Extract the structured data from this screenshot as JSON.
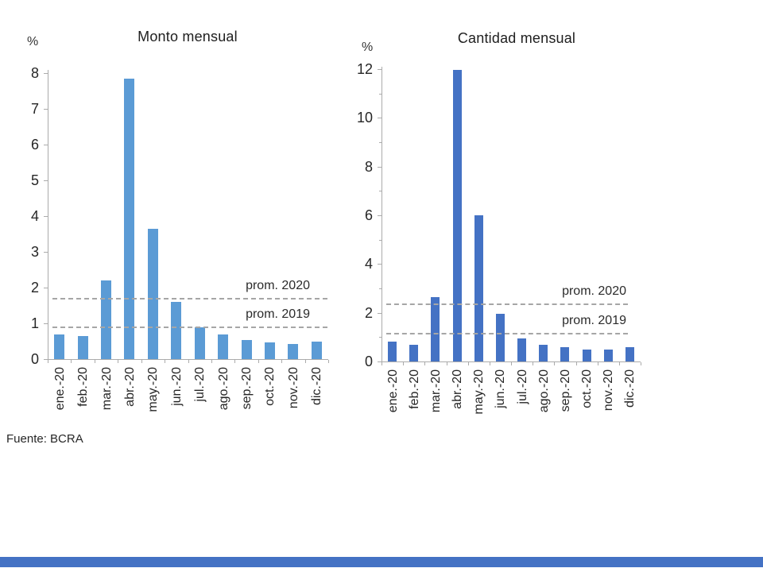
{
  "source_note": "Fuente: BCRA",
  "colors": {
    "left_bar": "#5B9BD5",
    "right_bar": "#4472C4",
    "dashed_line": "#A6A6A6",
    "axis": "#ABABAB",
    "footer_bar": "#4472C4"
  },
  "chart_data": [
    {
      "type": "bar",
      "title": "Monto mensual",
      "ylabel": "%",
      "categories": [
        "ene.-20",
        "feb.-20",
        "mar.-20",
        "abr.-20",
        "may.-20",
        "jun.-20",
        "jul.-20",
        "ago.-20",
        "sep.-20",
        "oct.-20",
        "nov.-20",
        "dic.-20"
      ],
      "values": [
        0.7,
        0.65,
        2.2,
        7.85,
        3.65,
        1.6,
        0.88,
        0.7,
        0.53,
        0.46,
        0.42,
        0.48
      ],
      "ylim": [
        0,
        8
      ],
      "yticks": [
        0,
        1,
        2,
        3,
        4,
        5,
        6,
        7,
        8
      ],
      "yticks_minor": [],
      "grid": false,
      "bar_color": "#5B9BD5",
      "reference_lines": [
        {
          "label": "prom. 2020",
          "value": 1.7
        },
        {
          "label": "prom. 2019",
          "value": 0.9
        }
      ]
    },
    {
      "type": "bar",
      "title": "Cantidad mensual",
      "ylabel": "%",
      "categories": [
        "ene.-20",
        "feb.-20",
        "mar.-20",
        "abr.-20",
        "may.-20",
        "jun.-20",
        "jul.-20",
        "ago.-20",
        "sep.-20",
        "oct.-20",
        "nov.-20",
        "dic.-20"
      ],
      "values": [
        0.8,
        0.7,
        2.65,
        11.95,
        6.0,
        1.95,
        0.95,
        0.67,
        0.6,
        0.5,
        0.5,
        0.58
      ],
      "ylim": [
        0,
        12
      ],
      "yticks": [
        0,
        2,
        4,
        6,
        8,
        10,
        12
      ],
      "yticks_minor": [
        1,
        3,
        5,
        7,
        9,
        11
      ],
      "grid": false,
      "bar_color": "#4472C4",
      "reference_lines": [
        {
          "label": "prom. 2020",
          "value": 2.35
        },
        {
          "label": "prom. 2019",
          "value": 1.15
        }
      ]
    }
  ]
}
